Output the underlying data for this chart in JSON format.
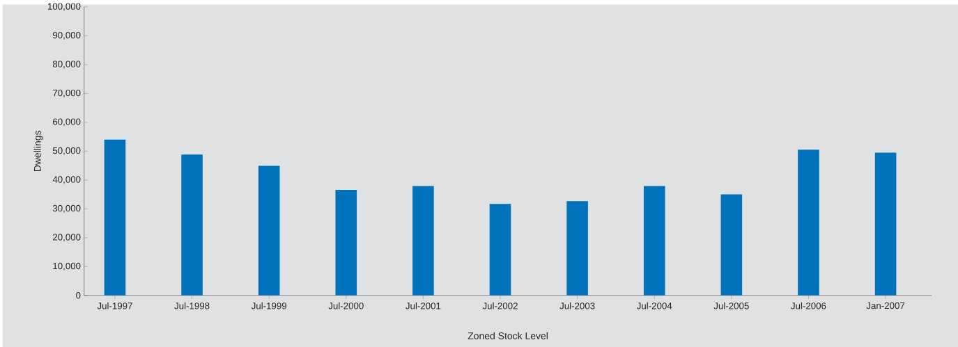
{
  "chart_data": {
    "type": "bar",
    "xlabel": "Zoned Stock Level",
    "ylabel": "Dwellings",
    "categories": [
      "Jul-1997",
      "Jul-1998",
      "Jul-1999",
      "Jul-2000",
      "Jul-2001",
      "Jul-2002",
      "Jul-2003",
      "Jul-2004",
      "Jul-2005",
      "Jul-2006",
      "Jan-2007"
    ],
    "values": [
      54000,
      48800,
      44900,
      36600,
      37900,
      31700,
      32700,
      37900,
      35000,
      50500,
      49500
    ],
    "color": "#0072bc",
    "ylim": [
      0,
      100000
    ],
    "yticks": [
      {
        "value": 0,
        "label": "0"
      },
      {
        "value": 10000,
        "label": "10,000"
      },
      {
        "value": 20000,
        "label": "20,000"
      },
      {
        "value": 30000,
        "label": "30,000"
      },
      {
        "value": 40000,
        "label": "40,000"
      },
      {
        "value": 50000,
        "label": "50,000"
      },
      {
        "value": 60000,
        "label": "60,000"
      },
      {
        "value": 70000,
        "label": "70,000"
      },
      {
        "value": 80000,
        "label": "80,000"
      },
      {
        "value": 90000,
        "label": "90,000"
      },
      {
        "value": 100000,
        "label": "100,000"
      }
    ],
    "grid": false
  }
}
